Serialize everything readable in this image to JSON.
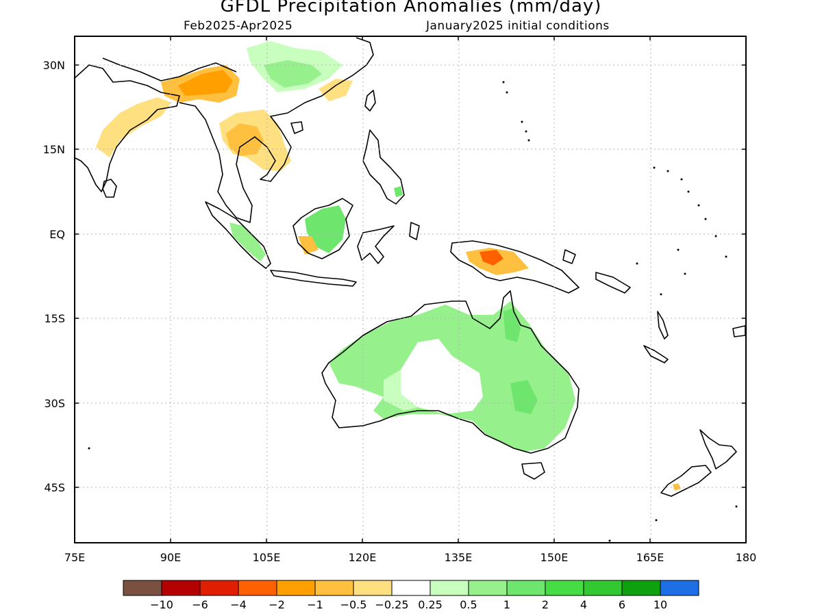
{
  "title": "GFDL Precipitation Anomalies (mm/day)",
  "subtitle_left": "Feb2025-Apr2025",
  "subtitle_right": "January2025 initial conditions",
  "map": {
    "type": "map",
    "region": "Indian Ocean / Maritime Continent / Australia",
    "lon_range": [
      75,
      180
    ],
    "lat_range": [
      -53,
      35
    ],
    "grid": true,
    "x_ticks": [
      "75E",
      "90E",
      "105E",
      "120E",
      "135E",
      "150E",
      "165E",
      "180"
    ],
    "y_ticks": [
      "30N",
      "15N",
      "EQ",
      "15S",
      "30S",
      "45S"
    ]
  },
  "colorbar": {
    "colors": [
      "#7a5040",
      "#b40000",
      "#e01e00",
      "#ff6000",
      "#ffa000",
      "#ffc040",
      "#ffe080",
      "#ffffff",
      "#c8ffbe",
      "#96f08c",
      "#6ee66e",
      "#46dc46",
      "#32c832",
      "#0fa00f",
      "#1e6ee6"
    ],
    "labels": [
      "-10",
      "-6",
      "-4",
      "-2",
      "-1",
      "-0.5",
      "-0.25",
      "0.25",
      "0.5",
      "1",
      "2",
      "4",
      "6",
      "10"
    ]
  },
  "palette": {
    "coast": "#000000",
    "grid": "#b4b4b4"
  }
}
